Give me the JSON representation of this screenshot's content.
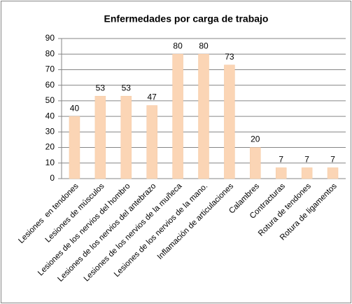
{
  "chart_data": {
    "type": "bar",
    "title": "Enfermedades por carga de trabajo",
    "categories": [
      "Lesiones  en tendones",
      "Lesiones de músculos",
      "Lesiones de los nervios del hombro",
      "Lesiones de los nervios del antebrazo",
      "Lesiones de los nervios de la muñeca",
      "Lesiones de los nervios de la mano.",
      "Inflamación de articulaciones",
      "Calambres",
      "Contracturas",
      "Rotura de tendones",
      "Rotura de ligamentos"
    ],
    "values": [
      40,
      53,
      53,
      47,
      80,
      80,
      73,
      20,
      7,
      7,
      7
    ],
    "color": "#fbd5b5",
    "ylim": [
      0,
      90
    ],
    "yticks": [
      0,
      10,
      20,
      30,
      40,
      50,
      60,
      70,
      80,
      90
    ],
    "grid": true
  }
}
